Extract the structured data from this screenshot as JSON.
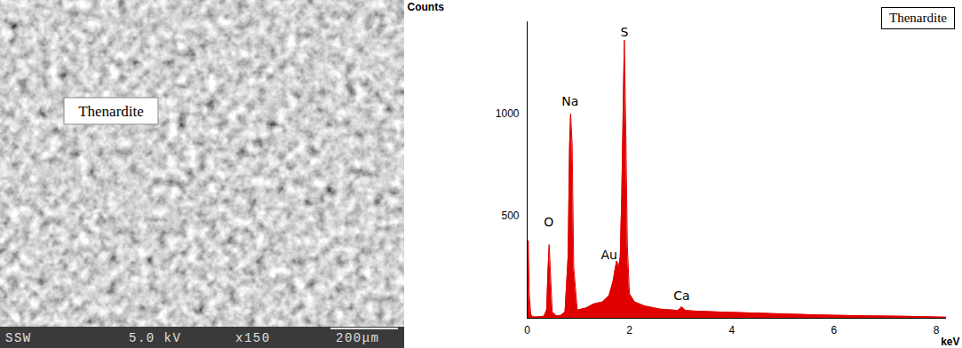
{
  "chart_data": {
    "type": "area",
    "title": "Thenardite",
    "x_label": "keV",
    "y_label": "Counts",
    "x": [
      0,
      0.02,
      0.04,
      0.07,
      0.1,
      0.16,
      0.25,
      0.33,
      0.38,
      0.41,
      0.43,
      0.45,
      0.49,
      0.57,
      0.66,
      0.74,
      0.8,
      0.83,
      0.85,
      0.88,
      0.91,
      0.98,
      1.15,
      1.3,
      1.48,
      1.6,
      1.68,
      1.72,
      1.75,
      1.79,
      1.82,
      1.85,
      1.9,
      1.93,
      1.96,
      2.0,
      2.1,
      2.3,
      2.6,
      2.85,
      2.95,
      3.02,
      3.1,
      3.3,
      3.8,
      4.5,
      5.2,
      5.9,
      6.6,
      7.3,
      7.8,
      8.0,
      8.2
    ],
    "values": [
      0,
      380,
      120,
      20,
      8,
      6,
      8,
      10,
      40,
      250,
      360,
      250,
      30,
      12,
      14,
      30,
      300,
      850,
      1000,
      850,
      250,
      40,
      50,
      70,
      80,
      110,
      180,
      240,
      280,
      250,
      300,
      600,
      1360,
      900,
      350,
      120,
      80,
      60,
      45,
      40,
      38,
      55,
      38,
      35,
      30,
      25,
      20,
      15,
      12,
      10,
      8,
      6,
      5
    ],
    "color": "#e00000",
    "xlim": [
      0,
      8.2
    ],
    "xticks": [
      0,
      2,
      4,
      6,
      8
    ],
    "ylim": [
      0,
      1450
    ],
    "yticks": [
      500,
      1000
    ],
    "grid": false,
    "annotations": [
      {
        "text": "O",
        "x": 0.42,
        "y": 470
      },
      {
        "text": "Na",
        "x": 0.84,
        "y": 1060
      },
      {
        "text": "S",
        "x": 1.9,
        "y": 1400
      },
      {
        "text": "Au",
        "x": 1.6,
        "y": 310
      },
      {
        "text": "Ca",
        "x": 3.02,
        "y": 110
      }
    ]
  },
  "micrograph": {
    "label": "Thenardite",
    "info_bar": [
      "SSW",
      "5.0 kV",
      "x150",
      "200μm"
    ]
  }
}
